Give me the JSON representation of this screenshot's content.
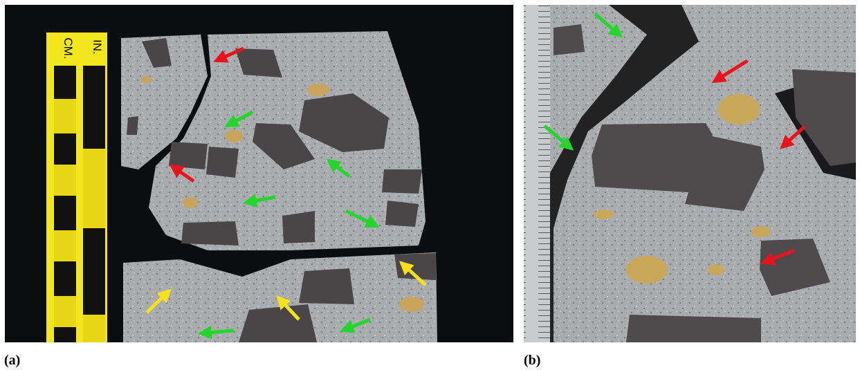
{
  "panels": [
    {
      "label": "(a)",
      "scale": {
        "left": "CM.",
        "right": "IN."
      }
    },
    {
      "label": "(b)"
    }
  ]
}
